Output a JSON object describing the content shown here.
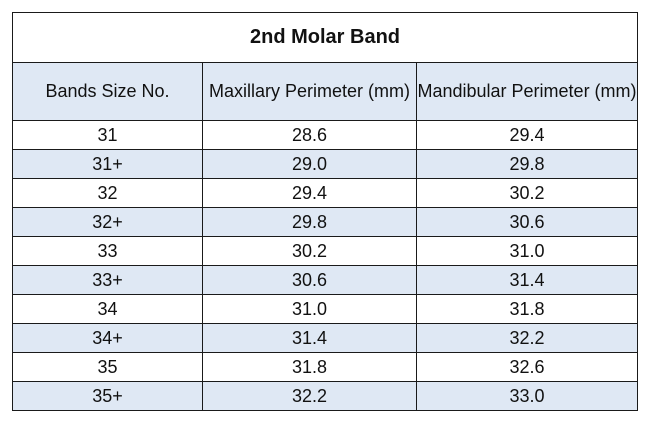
{
  "table": {
    "title": "2nd Molar Band",
    "headers": [
      "Bands Size No.",
      "Maxillary Perimeter (mm)",
      "Mandibular Perimeter (mm)"
    ],
    "rows": [
      [
        "31",
        "28.6",
        "29.4"
      ],
      [
        "31+",
        "29.0",
        "29.8"
      ],
      [
        "32",
        "29.4",
        "30.2"
      ],
      [
        "32+",
        "29.8",
        "30.6"
      ],
      [
        "33",
        "30.2",
        "31.0"
      ],
      [
        "33+",
        "30.6",
        "31.4"
      ],
      [
        "34",
        "31.0",
        "31.8"
      ],
      [
        "34+",
        "31.4",
        "32.2"
      ],
      [
        "35",
        "31.8",
        "32.6"
      ],
      [
        "35+",
        "32.2",
        "33.0"
      ]
    ],
    "colors": {
      "header_bg": "#dfe8f4",
      "stripe_bg": "#dfe8f4",
      "border": "#1a1a1a"
    }
  }
}
